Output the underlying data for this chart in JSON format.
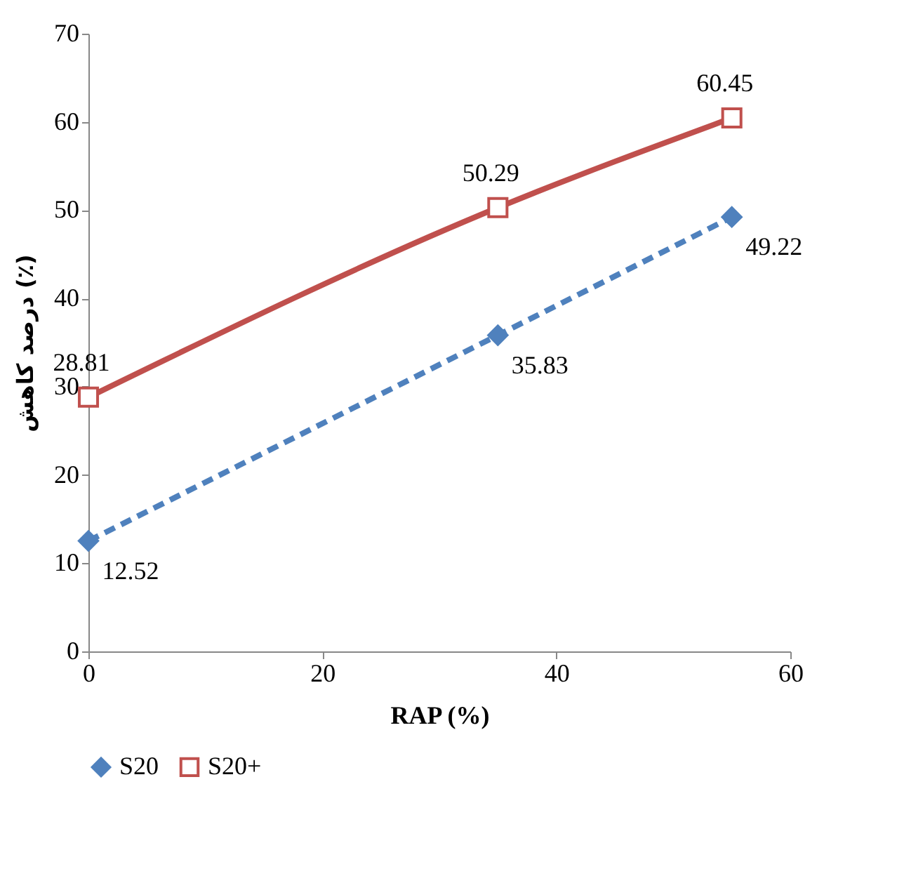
{
  "chart_data": {
    "type": "line",
    "xlabel": "RAP  (%)",
    "ylabel": "درصد کاهش (٪)",
    "x": [
      0,
      35,
      55
    ],
    "series": [
      {
        "name": "S20",
        "color": "#4f81bd",
        "values": [
          12.52,
          35.83,
          49.22
        ],
        "marker": "diamond",
        "line_style": "dashed"
      },
      {
        "name": "S20+",
        "color": "#c0504d",
        "values": [
          28.81,
          50.29,
          60.45
        ],
        "marker": "square",
        "line_style": "solid"
      }
    ],
    "xlim": [
      0,
      60
    ],
    "xticks": [
      0,
      20,
      40,
      60
    ],
    "ylim": [
      0,
      70
    ],
    "yticks": [
      0,
      10,
      20,
      30,
      40,
      50,
      60,
      70
    ],
    "data_labels": true,
    "grid": false,
    "legend": "bottom"
  }
}
